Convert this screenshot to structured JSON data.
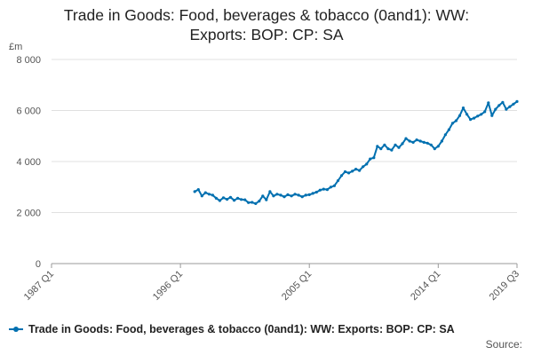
{
  "chart_data": {
    "type": "line",
    "title_line1": "Trade in Goods: Food, beverages & tobacco (0and1): WW:",
    "title_line2": "Exports: BOP: CP: SA",
    "yunit": "£m",
    "ylim": [
      0,
      8000
    ],
    "yticks": [
      "0",
      "2 000",
      "4 000",
      "6 000",
      "8 000"
    ],
    "ytick_values": [
      0,
      2000,
      4000,
      6000,
      8000
    ],
    "xticks": [
      "1987 Q1",
      "1996 Q1",
      "2005 Q1",
      "2014 Q1",
      "2019 Q3"
    ],
    "xtick_values": [
      1987.0,
      1996.0,
      2005.0,
      2014.0,
      2019.5
    ],
    "xlim": [
      1987.0,
      2019.5
    ],
    "grid": true,
    "legend_position": "bottom",
    "source_label": "Source:",
    "series": [
      {
        "name": "Trade in Goods: Food, beverages & tobacco (0and1): WW: Exports: BOP: CP: SA",
        "color": "#0070B0",
        "x": [
          1997.0,
          1997.25,
          1997.5,
          1997.75,
          1998.0,
          1998.25,
          1998.5,
          1998.75,
          1999.0,
          1999.25,
          1999.5,
          1999.75,
          2000.0,
          2000.25,
          2000.5,
          2000.75,
          2001.0,
          2001.25,
          2001.5,
          2001.75,
          2002.0,
          2002.25,
          2002.5,
          2002.75,
          2003.0,
          2003.25,
          2003.5,
          2003.75,
          2004.0,
          2004.25,
          2004.5,
          2004.75,
          2005.0,
          2005.25,
          2005.5,
          2005.75,
          2006.0,
          2006.25,
          2006.5,
          2006.75,
          2007.0,
          2007.25,
          2007.5,
          2007.75,
          2008.0,
          2008.25,
          2008.5,
          2008.75,
          2009.0,
          2009.25,
          2009.5,
          2009.75,
          2010.0,
          2010.25,
          2010.5,
          2010.75,
          2011.0,
          2011.25,
          2011.5,
          2011.75,
          2012.0,
          2012.25,
          2012.5,
          2012.75,
          2013.0,
          2013.25,
          2013.5,
          2013.75,
          2014.0,
          2014.25,
          2014.5,
          2014.75,
          2015.0,
          2015.25,
          2015.5,
          2015.75,
          2016.0,
          2016.25,
          2016.5,
          2016.75,
          2017.0,
          2017.25,
          2017.5,
          2017.75,
          2018.0,
          2018.25,
          2018.5,
          2018.75,
          2019.0,
          2019.25,
          2019.5
        ],
        "values": [
          2820,
          2900,
          2650,
          2780,
          2720,
          2680,
          2560,
          2470,
          2580,
          2520,
          2600,
          2480,
          2560,
          2510,
          2500,
          2390,
          2400,
          2350,
          2450,
          2650,
          2500,
          2820,
          2650,
          2720,
          2680,
          2620,
          2700,
          2650,
          2720,
          2680,
          2620,
          2680,
          2700,
          2750,
          2800,
          2880,
          2920,
          2900,
          3000,
          3050,
          3250,
          3450,
          3600,
          3550,
          3620,
          3700,
          3650,
          3800,
          3900,
          4100,
          4150,
          4600,
          4500,
          4650,
          4500,
          4450,
          4650,
          4550,
          4700,
          4900,
          4800,
          4750,
          4850,
          4800,
          4750,
          4720,
          4650,
          4500,
          4600,
          4800,
          5050,
          5250,
          5500,
          5600,
          5800,
          6100,
          5850,
          5650,
          5700,
          5780,
          5850,
          5950,
          6300,
          5800,
          6050,
          6200,
          6320,
          6050,
          6150,
          6250,
          6350
        ]
      }
    ]
  }
}
